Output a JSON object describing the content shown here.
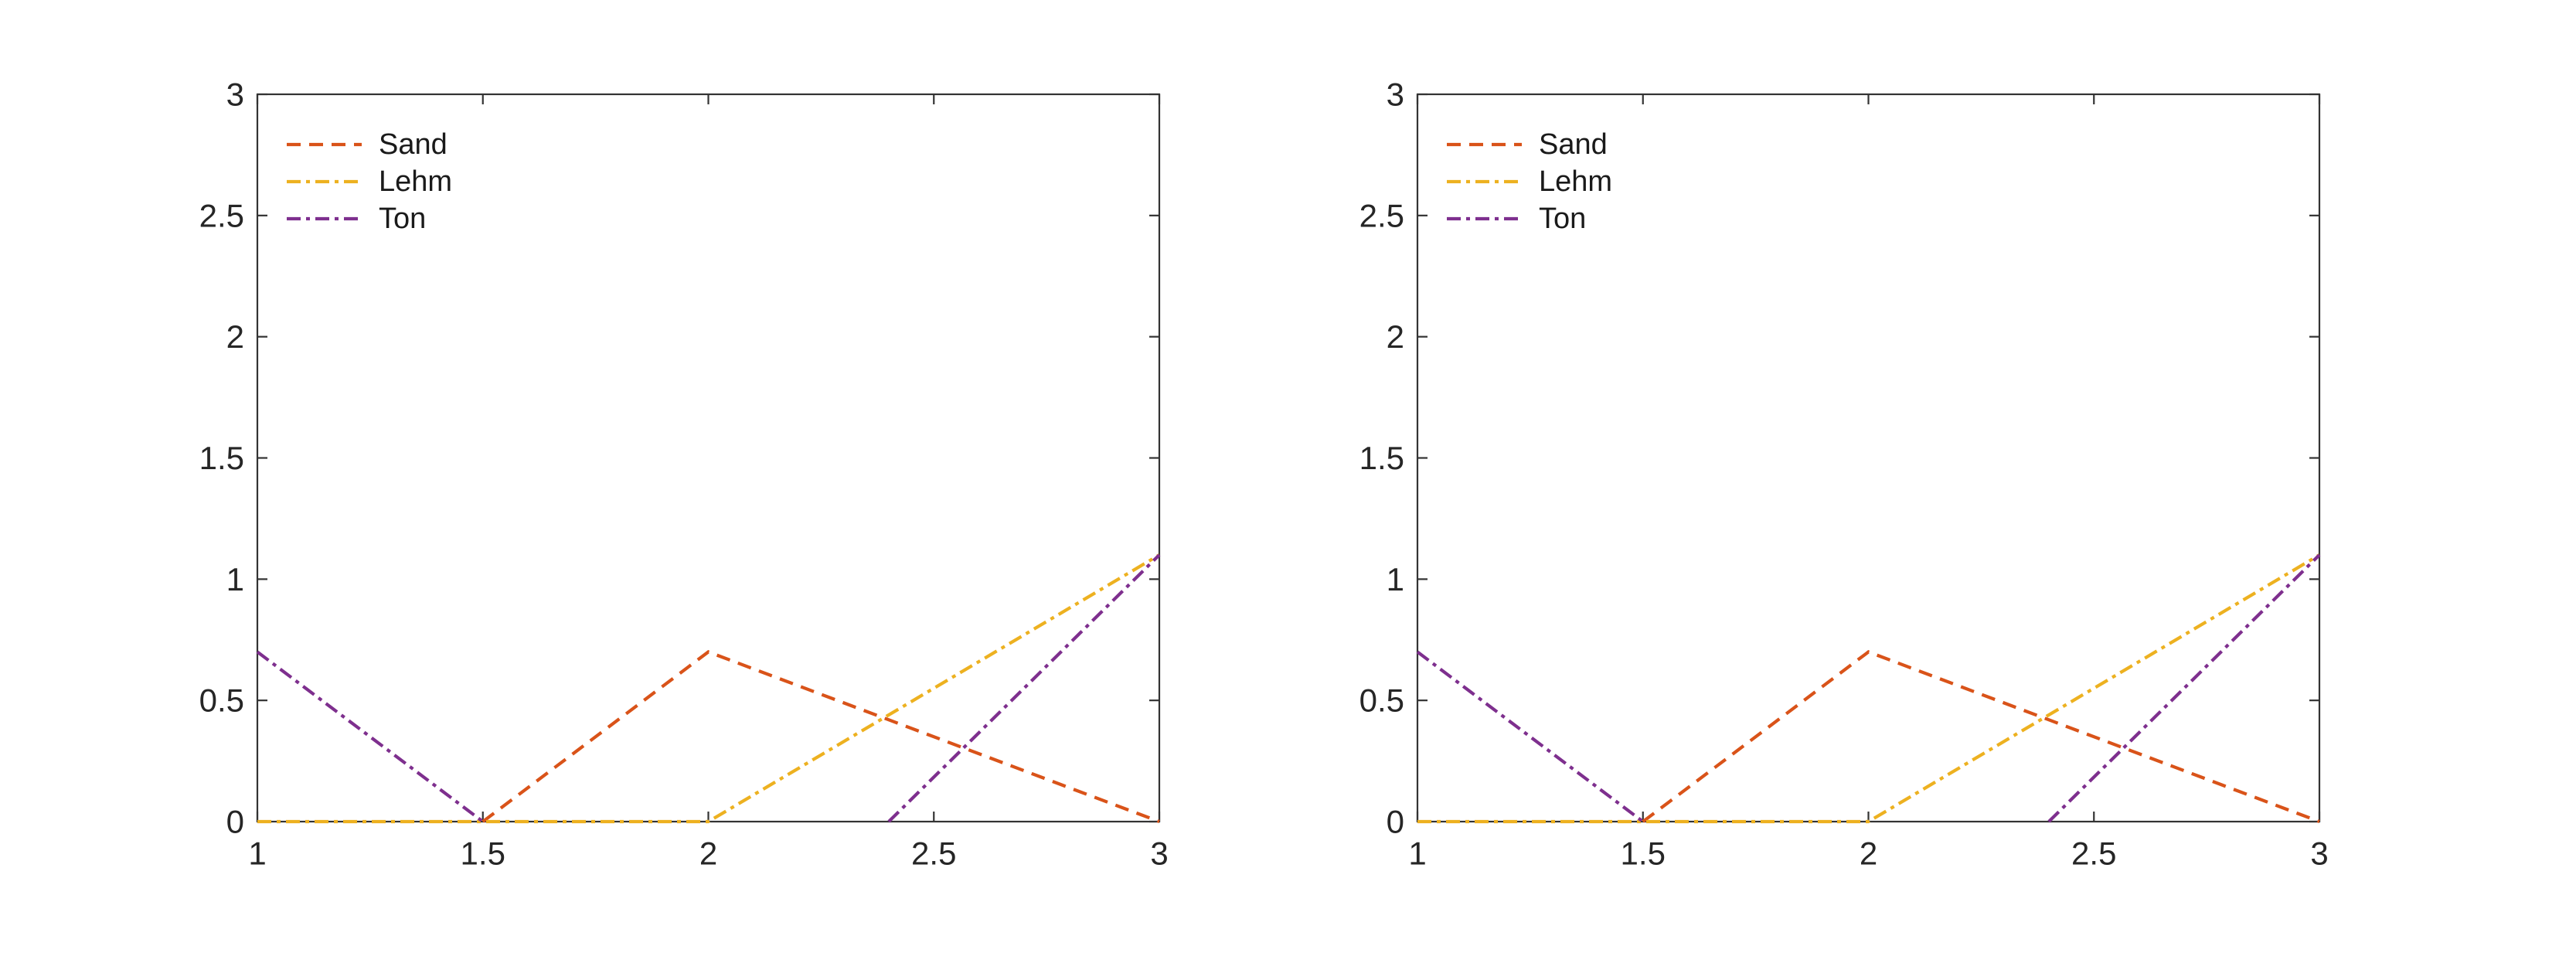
{
  "figure": {
    "background_color": "#ffffff",
    "axis_color": "#333333",
    "tick_label_color": "#262626",
    "legend_text_color": "#1a1a1a"
  },
  "chart_data": [
    {
      "type": "line",
      "panel": "left",
      "title": "",
      "xlabel": "",
      "ylabel": "",
      "xlim": [
        1,
        3
      ],
      "ylim": [
        0,
        3
      ],
      "xticks": [
        1,
        1.5,
        2,
        2.5,
        3
      ],
      "xtick_labels": [
        "1",
        "1.5",
        "2",
        "2.5",
        "3"
      ],
      "yticks": [
        0,
        0.5,
        1,
        1.5,
        2,
        2.5,
        3
      ],
      "ytick_labels": [
        "0",
        "0.5",
        "1",
        "1.5",
        "2",
        "2.5",
        "3"
      ],
      "grid": false,
      "box": true,
      "tick_direction": "in",
      "legend": {
        "location": "northwest-inside",
        "box": false,
        "entries": [
          "Sand",
          "Lehm",
          "Ton"
        ]
      },
      "series": [
        {
          "name": "Sand",
          "color": "#d95319",
          "linestyle": "dashed",
          "points": [
            [
              1,
              0
            ],
            [
              1.5,
              0
            ],
            [
              2,
              0.7
            ],
            [
              3,
              0
            ]
          ],
          "visible_segments": [
            [
              [
                1.5,
                0
              ],
              [
                2,
                0.7
              ],
              [
                3,
                0
              ]
            ]
          ]
        },
        {
          "name": "Lehm",
          "color": "#edb120",
          "linestyle": "dashdot",
          "points": [
            [
              1,
              0
            ],
            [
              2,
              0
            ],
            [
              3,
              1.1
            ]
          ],
          "visible_segments": [
            [
              [
                1,
                0
              ],
              [
                2,
                0
              ],
              [
                3,
                1.1
              ]
            ]
          ]
        },
        {
          "name": "Ton",
          "color": "#7e2f8e",
          "linestyle": "dashdot",
          "points": [
            [
              1,
              0.7
            ],
            [
              1.5,
              0
            ],
            [
              2.4,
              0
            ],
            [
              3,
              1.1
            ]
          ],
          "visible_segments": [
            [
              [
                1,
                0.7
              ],
              [
                1.5,
                0
              ]
            ],
            [
              [
                2.4,
                0
              ],
              [
                3,
                1.1
              ]
            ]
          ]
        }
      ]
    },
    {
      "type": "line",
      "panel": "right",
      "title": "",
      "xlabel": "",
      "ylabel": "",
      "xlim": [
        1,
        3
      ],
      "ylim": [
        0,
        3
      ],
      "xticks": [
        1,
        1.5,
        2,
        2.5,
        3
      ],
      "xtick_labels": [
        "1",
        "1.5",
        "2",
        "2.5",
        "3"
      ],
      "yticks": [
        0,
        0.5,
        1,
        1.5,
        2,
        2.5,
        3
      ],
      "ytick_labels": [
        "0",
        "0.5",
        "1",
        "1.5",
        "2",
        "2.5",
        "3"
      ],
      "grid": false,
      "box": true,
      "tick_direction": "in",
      "legend": {
        "location": "northwest-inside",
        "box": false,
        "entries": [
          "Sand",
          "Lehm",
          "Ton"
        ]
      },
      "series": [
        {
          "name": "Sand",
          "color": "#d95319",
          "linestyle": "dashed",
          "points": [
            [
              1,
              0
            ],
            [
              1.5,
              0
            ],
            [
              2,
              0.7
            ],
            [
              3,
              0
            ]
          ],
          "visible_segments": [
            [
              [
                1.5,
                0
              ],
              [
                2,
                0.7
              ],
              [
                3,
                0
              ]
            ]
          ]
        },
        {
          "name": "Lehm",
          "color": "#edb120",
          "linestyle": "dashdot",
          "points": [
            [
              1,
              0
            ],
            [
              2,
              0
            ],
            [
              3,
              1.1
            ]
          ],
          "visible_segments": [
            [
              [
                1,
                0
              ],
              [
                2,
                0
              ],
              [
                3,
                1.1
              ]
            ]
          ]
        },
        {
          "name": "Ton",
          "color": "#7e2f8e",
          "linestyle": "dashdot",
          "points": [
            [
              1,
              0.7
            ],
            [
              1.5,
              0
            ],
            [
              2.4,
              0
            ],
            [
              3,
              1.1
            ]
          ],
          "visible_segments": [
            [
              [
                1,
                0.7
              ],
              [
                1.5,
                0
              ]
            ],
            [
              [
                2.4,
                0
              ],
              [
                3,
                1.1
              ]
            ]
          ]
        }
      ]
    }
  ]
}
